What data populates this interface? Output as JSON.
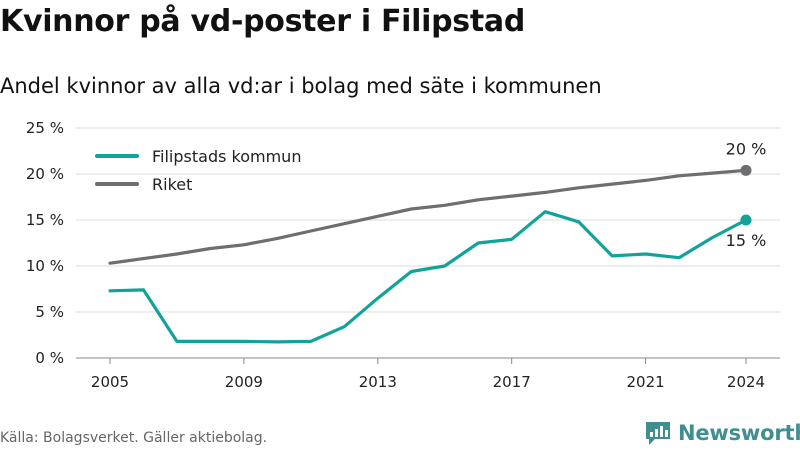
{
  "title": "Kvinnor på vd-poster i Filipstad",
  "subtitle": "Andel kvinnor av alla vd:ar i bolag med säte i kommunen",
  "source": "Källa: Bolagsverket. Gäller aktiebolag.",
  "brand": "Newsworthy",
  "colors": {
    "kommun": "#11a39a",
    "riket": "#6e6e72",
    "grid": "#dddddd",
    "brand": "#3f8f91"
  },
  "chart_data": {
    "type": "line",
    "ylim": [
      0,
      25
    ],
    "xlim": [
      2005,
      2024
    ],
    "yticks": [
      0,
      5,
      10,
      15,
      20,
      25
    ],
    "ytick_labels": [
      "0 %",
      "5 %",
      "10 %",
      "15 %",
      "20 %",
      "25 %"
    ],
    "xticks": [
      2005,
      2009,
      2013,
      2017,
      2021,
      2024
    ],
    "xtick_labels": [
      "2005",
      "2009",
      "2013",
      "2017",
      "2021",
      "2024"
    ],
    "grid": true,
    "legend_position": "top-left",
    "x": [
      2005,
      2006,
      2007,
      2008,
      2009,
      2010,
      2011,
      2012,
      2013,
      2014,
      2015,
      2016,
      2017,
      2018,
      2019,
      2020,
      2021,
      2022,
      2023,
      2024
    ],
    "series": [
      {
        "name": "Filipstads kommun",
        "color": "#11a39a",
        "values": [
          7.3,
          7.4,
          1.8,
          1.8,
          1.8,
          1.75,
          1.8,
          3.4,
          6.5,
          9.4,
          10.0,
          12.5,
          12.9,
          15.9,
          14.8,
          11.1,
          11.3,
          10.9,
          13.1,
          15.0
        ],
        "end_label": "15 %"
      },
      {
        "name": "Riket",
        "color": "#6e6e72",
        "values": [
          10.3,
          10.8,
          11.3,
          11.9,
          12.3,
          13.0,
          13.8,
          14.6,
          15.4,
          16.2,
          16.6,
          17.2,
          17.6,
          18.0,
          18.5,
          18.9,
          19.3,
          19.8,
          20.1,
          20.4
        ],
        "end_label": "20 %"
      }
    ]
  }
}
